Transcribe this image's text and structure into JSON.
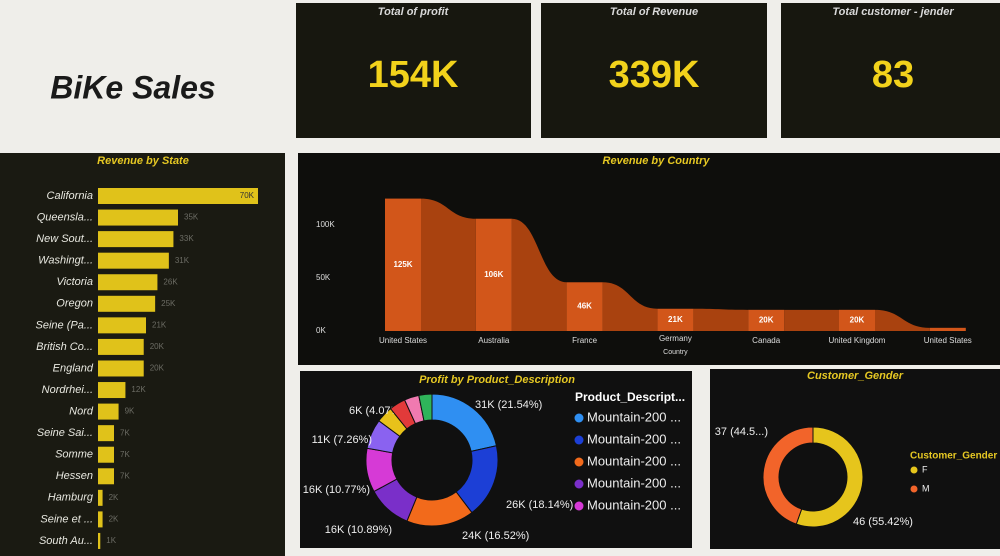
{
  "header": {
    "title": "BiKe Sales"
  },
  "kpis": [
    {
      "label": "Total of profit",
      "value": "154K"
    },
    {
      "label": "Total of Revenue",
      "value": "339K"
    },
    {
      "label": "Total customer - jender",
      "value": "83"
    }
  ],
  "chart_data": [
    {
      "type": "hbar",
      "title": "Revenue by State",
      "color": "#e0c21a",
      "categories": [
        "California",
        "Queensla...",
        "New Sout...",
        "Washingt...",
        "Victoria",
        "Oregon",
        "Seine (Pa...",
        "British Co...",
        "England",
        "Nordrhei...",
        "Nord",
        "Seine Sai...",
        "Somme",
        "Hessen",
        "Hamburg",
        "Seine et ...",
        "South Au..."
      ],
      "values": [
        70000,
        35000,
        33000,
        31000,
        26000,
        25000,
        21000,
        20000,
        20000,
        12000,
        9000,
        7000,
        7000,
        7000,
        2000,
        2000,
        1000
      ],
      "value_labels": [
        "70K",
        "35K",
        "33K",
        "31K",
        "26K",
        "25K",
        "21K",
        "20K",
        "20K",
        "12K",
        "9K",
        "7K",
        "7K",
        "7K",
        "2K",
        "2K",
        "1K"
      ]
    },
    {
      "type": "ribbon",
      "title": "Revenue by Country",
      "x_label": "Country",
      "color": "#d2561a",
      "categories": [
        "United States",
        "Australia",
        "France",
        "Germany",
        "Canada",
        "United Kingdom",
        "United States"
      ],
      "values": [
        125000,
        106000,
        46000,
        21000,
        20000,
        20000,
        3000
      ],
      "value_labels": [
        "125K",
        "106K",
        "46K",
        "21K",
        "20K",
        "20K",
        null
      ],
      "ylim": [
        0,
        135000
      ],
      "yticks": [
        {
          "value": 0,
          "label": "0K"
        },
        {
          "value": 50000,
          "label": "50K"
        },
        {
          "value": 100000,
          "label": "100K"
        }
      ]
    },
    {
      "type": "donut",
      "title": "Profit by Product_Description",
      "legend_title": "Product_Descript...",
      "categories": [
        "Mountain-200 ...",
        "Mountain-200 ...",
        "Mountain-200 ...",
        "Mountain-200 ...",
        "Mountain-200 ...",
        null,
        null,
        null,
        null,
        null
      ],
      "values": [
        21.54,
        18.14,
        16.52,
        10.89,
        10.77,
        7.26,
        4.07,
        4.0,
        3.6,
        3.21
      ],
      "value_labels": [
        "31K (21.54%)",
        "26K (18.14%)",
        "24K (16.52%)",
        "16K (10.89%)",
        "16K (10.77%)",
        "11K (7.26%)",
        "6K (4.07%)",
        null,
        null,
        null
      ],
      "colors": [
        "#2f8ff2",
        "#1c3fd6",
        "#f26a1b",
        "#7a2fc9",
        "#d63ad6",
        "#8a62f0",
        "#e8c21a",
        "#e23a3a",
        "#f07ab0",
        "#2fb45a"
      ]
    },
    {
      "type": "donut",
      "title": "Customer_Gender",
      "legend_title": "Customer_Gender",
      "categories": [
        "F",
        "M"
      ],
      "values": [
        46,
        37
      ],
      "value_labels": [
        "46 (55.42%)",
        "37 (44.5...)"
      ],
      "colors": [
        "#e6c51c",
        "#f2642a"
      ]
    }
  ]
}
